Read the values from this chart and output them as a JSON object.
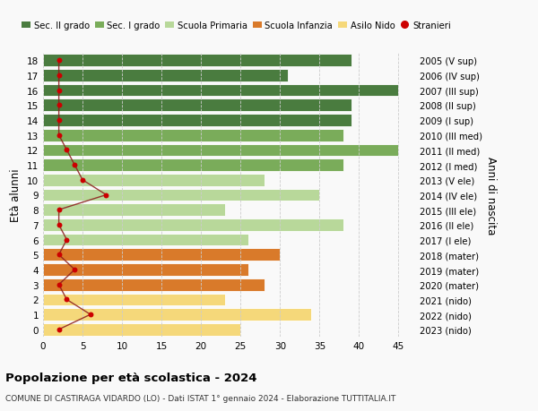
{
  "ages": [
    18,
    17,
    16,
    15,
    14,
    13,
    12,
    11,
    10,
    9,
    8,
    7,
    6,
    5,
    4,
    3,
    2,
    1,
    0
  ],
  "right_labels": [
    "2005 (V sup)",
    "2006 (IV sup)",
    "2007 (III sup)",
    "2008 (II sup)",
    "2009 (I sup)",
    "2010 (III med)",
    "2011 (II med)",
    "2012 (I med)",
    "2013 (V ele)",
    "2014 (IV ele)",
    "2015 (III ele)",
    "2016 (II ele)",
    "2017 (I ele)",
    "2018 (mater)",
    "2019 (mater)",
    "2020 (mater)",
    "2021 (nido)",
    "2022 (nido)",
    "2023 (nido)"
  ],
  "bar_values": [
    39,
    31,
    45,
    39,
    39,
    38,
    45,
    38,
    28,
    35,
    23,
    38,
    26,
    30,
    26,
    28,
    23,
    34,
    25
  ],
  "bar_colors": [
    "#4a7c3f",
    "#4a7c3f",
    "#4a7c3f",
    "#4a7c3f",
    "#4a7c3f",
    "#7aac5a",
    "#7aac5a",
    "#7aac5a",
    "#b8d89a",
    "#b8d89a",
    "#b8d89a",
    "#b8d89a",
    "#b8d89a",
    "#d97a2a",
    "#d97a2a",
    "#d97a2a",
    "#f5d87a",
    "#f5d87a",
    "#f5d87a"
  ],
  "stranieri_values": [
    2,
    2,
    2,
    2,
    2,
    2,
    3,
    4,
    5,
    8,
    2,
    2,
    3,
    2,
    4,
    2,
    3,
    6,
    2
  ],
  "legend_labels": [
    "Sec. II grado",
    "Sec. I grado",
    "Scuola Primaria",
    "Scuola Infanzia",
    "Asilo Nido",
    "Stranieri"
  ],
  "legend_colors": [
    "#4a7c3f",
    "#7aac5a",
    "#b8d89a",
    "#d97a2a",
    "#f5d87a",
    "#cc0000"
  ],
  "ylabel": "Età alunni",
  "right_ylabel": "Anni di nascita",
  "title": "Popolazione per età scolastica - 2024",
  "subtitle": "COMUNE DI CASTIRAGA VIDARDO (LO) - Dati ISTAT 1° gennaio 2024 - Elaborazione TUTTITALIA.IT",
  "xlim": [
    0,
    47
  ],
  "background_color": "#f9f9f9",
  "grid_color": "#cccccc"
}
